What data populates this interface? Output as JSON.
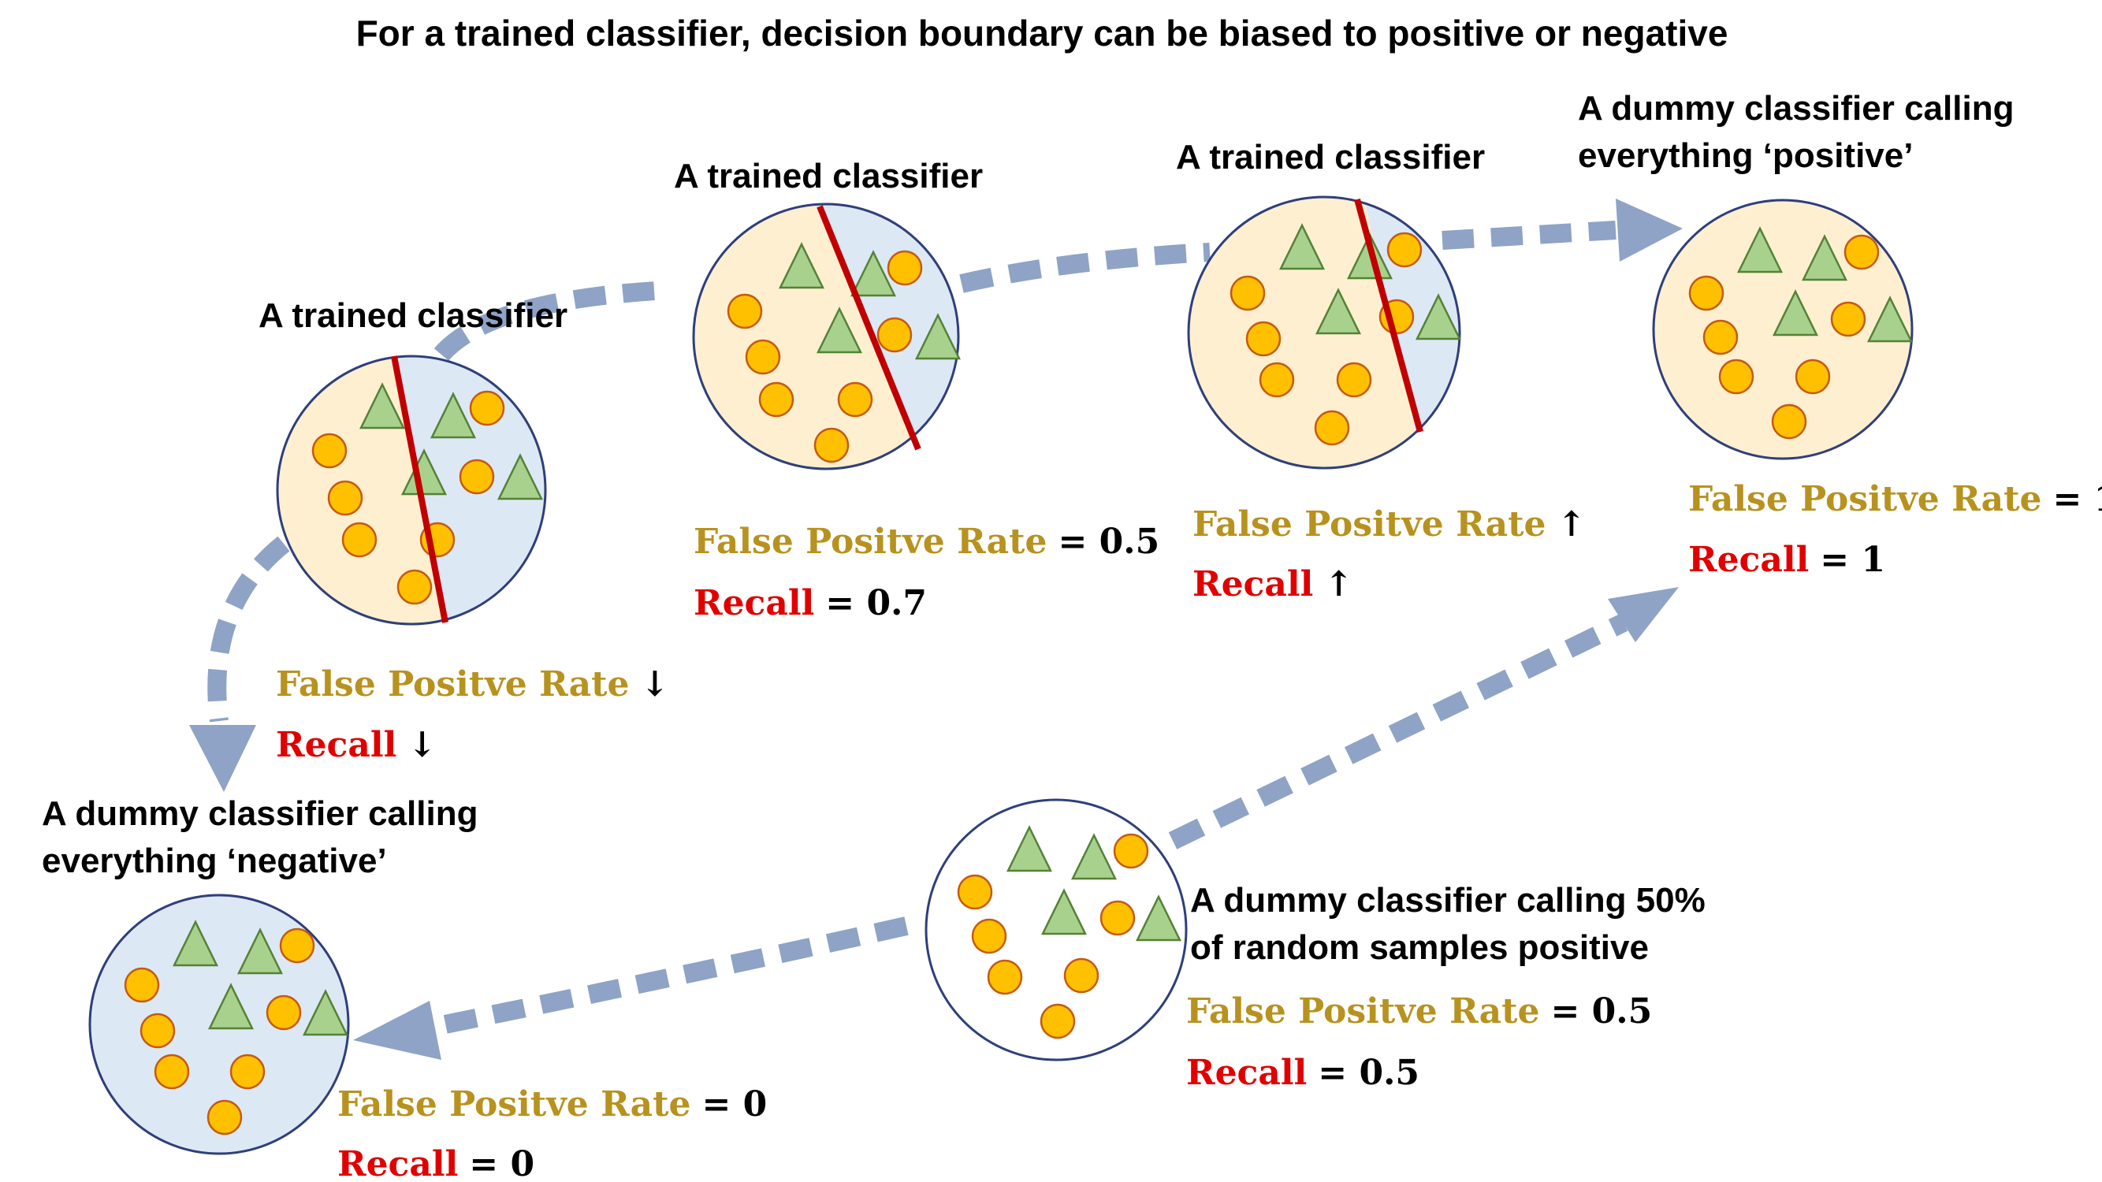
{
  "title": "For a trained classifier, decision boundary can be biased to positive or negative",
  "colors": {
    "fpr_label": "#b8921f",
    "recall_label": "#e00000",
    "positive_region": "#fdefd0",
    "negative_region": "#dde8f5",
    "arrow": "#8ea3c6",
    "boundary": "#c00000",
    "outline": "#2f3f7a"
  },
  "classifiers": [
    {
      "heading_lines": [
        "A trained classifier"
      ],
      "fpr_label": "False Positve Rate",
      "fpr_value": "↓",
      "recall_label": "Recall",
      "recall_value": "↓"
    },
    {
      "heading_lines": [
        "A trained classifier"
      ],
      "fpr_label": "False Positve Rate",
      "fpr_value": "= 0.5",
      "recall_label": "Recall",
      "recall_value": "= 0.7"
    },
    {
      "heading_lines": [
        "A trained classifier"
      ],
      "fpr_label": "False Positve Rate",
      "fpr_value": "↑",
      "recall_label": "Recall",
      "recall_value": "↑"
    },
    {
      "heading_lines": [
        "A dummy classifier calling",
        "everything ‘positive’"
      ],
      "fpr_label": "False Positve Rate",
      "fpr_value": "= 1",
      "recall_label": "Recall",
      "recall_value": "= 1"
    },
    {
      "heading_lines": [
        "A dummy classifier calling",
        "everything ‘negative’"
      ],
      "fpr_label": "False Positve Rate",
      "fpr_value": "= 0",
      "recall_label": "Recall",
      "recall_value": "= 0"
    },
    {
      "heading_lines": [
        "A dummy classifier calling 50%",
        "of random samples positive"
      ],
      "fpr_label": "False Positve Rate",
      "fpr_value": "= 0.5",
      "recall_label": "Recall",
      "recall_value": "= 0.5"
    }
  ]
}
